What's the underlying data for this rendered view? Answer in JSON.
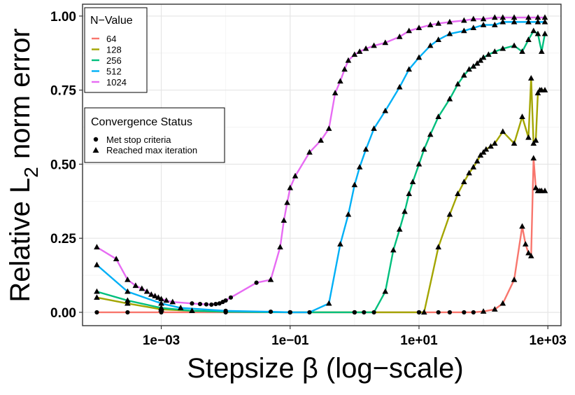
{
  "chart_data": {
    "type": "line",
    "xscale": "log10",
    "xlim": [
      6e-05,
      1600
    ],
    "ylim": [
      -0.045,
      1.04
    ],
    "x_ticks": [
      0.001,
      0.1,
      10,
      1000
    ],
    "x_tick_labels": [
      "1e−03",
      "1e−01",
      "1e+01",
      "1e+03"
    ],
    "y_ticks": [
      0,
      0.25,
      0.5,
      0.75,
      1.0
    ],
    "y_tick_labels": [
      "0.00",
      "0.25",
      "0.50",
      "0.75",
      "1.00"
    ],
    "xlabel": "Stepsize β (log−scale)",
    "ylabel_prefix": "Relative L",
    "ylabel_sub": "2",
    "ylabel_suffix": " norm error",
    "grid": true,
    "color_legend": {
      "title": "N−Value",
      "position": "top-left",
      "entries": [
        "64",
        "128",
        "256",
        "512",
        "1024"
      ]
    },
    "shape_legend": {
      "title": "Convergence Status",
      "position": "left",
      "entries": [
        {
          "label": "Met stop criteria",
          "shape": "circle"
        },
        {
          "label": "Reached max iteration",
          "shape": "triangle"
        }
      ]
    },
    "series": [
      {
        "name": "64",
        "color": "#F8766D",
        "x": [
          0.0001,
          0.0003,
          0.001,
          0.01,
          0.1,
          1,
          10,
          20,
          30,
          50,
          70,
          100,
          150,
          200,
          300,
          400,
          450,
          500,
          550,
          600,
          650,
          700,
          750,
          800,
          900
        ],
        "y": [
          0.0,
          0.0,
          0.0,
          0.0,
          0.0,
          0.0,
          0.0,
          0.0,
          0.0,
          0.0,
          0.0,
          0.003,
          0.01,
          0.03,
          0.11,
          0.29,
          0.23,
          0.2,
          0.19,
          0.52,
          0.42,
          0.41,
          0.41,
          0.41,
          0.41
        ],
        "status": [
          "c",
          "c",
          "c",
          "c",
          "c",
          "c",
          "c",
          "c",
          "c",
          "c",
          "c",
          "t",
          "t",
          "t",
          "t",
          "t",
          "t",
          "t",
          "t",
          "t",
          "t",
          "t",
          "t",
          "t",
          "t"
        ]
      },
      {
        "name": "128",
        "color": "#A3A500",
        "x": [
          0.0001,
          0.0003,
          0.001,
          0.003,
          0.01,
          0.1,
          1,
          10,
          12,
          20,
          30,
          40,
          50,
          60,
          70,
          80,
          90,
          100,
          110,
          130,
          150,
          200,
          300,
          400,
          500,
          550,
          600,
          650,
          700,
          750,
          800,
          900
        ],
        "y": [
          0.05,
          0.03,
          0.01,
          0.005,
          0.002,
          0.0,
          0.0,
          0.0,
          0.0,
          0.22,
          0.33,
          0.4,
          0.44,
          0.47,
          0.49,
          0.51,
          0.53,
          0.54,
          0.55,
          0.56,
          0.57,
          0.61,
          0.57,
          0.66,
          0.59,
          0.79,
          0.57,
          0.58,
          0.74,
          0.75,
          0.75,
          0.75
        ],
        "status": [
          "t",
          "t",
          "t",
          "t",
          "c",
          "c",
          "c",
          "c",
          "t",
          "t",
          "t",
          "t",
          "t",
          "t",
          "t",
          "t",
          "t",
          "t",
          "t",
          "t",
          "t",
          "t",
          "t",
          "t",
          "t",
          "t",
          "t",
          "t",
          "t",
          "t",
          "t",
          "t"
        ]
      },
      {
        "name": "256",
        "color": "#00BF7D",
        "x": [
          0.0001,
          0.0003,
          0.001,
          0.003,
          0.01,
          0.1,
          1,
          1.4,
          2,
          3,
          4,
          5,
          6,
          7,
          8,
          10,
          12,
          15,
          20,
          30,
          40,
          50,
          60,
          70,
          80,
          90,
          100,
          120,
          150,
          200,
          300,
          400,
          500,
          600,
          700,
          800,
          900
        ],
        "y": [
          0.07,
          0.04,
          0.015,
          0.005,
          0.002,
          0.0,
          0.0,
          0.0,
          0.0,
          0.07,
          0.21,
          0.28,
          0.34,
          0.4,
          0.44,
          0.5,
          0.55,
          0.6,
          0.66,
          0.72,
          0.77,
          0.8,
          0.82,
          0.83,
          0.84,
          0.85,
          0.86,
          0.87,
          0.88,
          0.89,
          0.9,
          0.88,
          0.92,
          0.95,
          0.94,
          0.88,
          0.94
        ],
        "status": [
          "t",
          "t",
          "t",
          "t",
          "c",
          "c",
          "c",
          "c",
          "c",
          "t",
          "t",
          "t",
          "t",
          "t",
          "t",
          "t",
          "t",
          "t",
          "t",
          "t",
          "t",
          "t",
          "t",
          "t",
          "t",
          "t",
          "t",
          "t",
          "t",
          "t",
          "t",
          "t",
          "t",
          "t",
          "t",
          "t",
          "t"
        ]
      },
      {
        "name": "512",
        "color": "#00B0F6",
        "x": [
          0.0001,
          0.0003,
          0.001,
          0.002,
          0.01,
          0.05,
          0.1,
          0.2,
          0.4,
          0.6,
          0.8,
          1,
          1.2,
          1.5,
          2,
          3,
          5,
          7,
          10,
          15,
          20,
          30,
          50,
          70,
          100,
          150,
          200,
          300,
          500,
          700,
          900
        ],
        "y": [
          0.16,
          0.07,
          0.03,
          0.015,
          0.005,
          0.002,
          0.0,
          0.0,
          0.03,
          0.23,
          0.33,
          0.43,
          0.49,
          0.55,
          0.62,
          0.68,
          0.76,
          0.82,
          0.86,
          0.9,
          0.92,
          0.94,
          0.95,
          0.96,
          0.97,
          0.97,
          0.98,
          0.98,
          0.98,
          0.98,
          0.98
        ],
        "status": [
          "t",
          "t",
          "t",
          "t",
          "c",
          "c",
          "c",
          "c",
          "t",
          "t",
          "t",
          "t",
          "t",
          "t",
          "t",
          "t",
          "t",
          "t",
          "t",
          "t",
          "t",
          "t",
          "t",
          "t",
          "t",
          "t",
          "t",
          "t",
          "t",
          "t",
          "t"
        ]
      },
      {
        "name": "1024",
        "color": "#E76BF3",
        "x": [
          0.0001,
          0.0002,
          0.0003,
          0.0004,
          0.0005,
          0.0006,
          0.0007,
          0.0008,
          0.0009,
          0.001,
          0.0012,
          0.0015,
          0.003,
          0.004,
          0.005,
          0.006,
          0.007,
          0.008,
          0.009,
          0.01,
          0.012,
          0.03,
          0.05,
          0.07,
          0.08,
          0.09,
          0.1,
          0.12,
          0.2,
          0.3,
          0.4,
          0.5,
          0.6,
          0.7,
          0.8,
          1,
          1.2,
          1.5,
          2,
          3,
          5,
          7,
          10,
          15,
          20,
          30,
          50,
          70,
          100,
          150,
          200,
          300,
          500,
          700,
          900
        ],
        "y": [
          0.22,
          0.18,
          0.11,
          0.09,
          0.08,
          0.07,
          0.06,
          0.055,
          0.05,
          0.045,
          0.04,
          0.035,
          0.03,
          0.028,
          0.027,
          0.026,
          0.028,
          0.03,
          0.035,
          0.04,
          0.05,
          0.1,
          0.11,
          0.22,
          0.31,
          0.37,
          0.42,
          0.46,
          0.54,
          0.58,
          0.62,
          0.74,
          0.78,
          0.82,
          0.85,
          0.87,
          0.88,
          0.89,
          0.9,
          0.91,
          0.93,
          0.95,
          0.96,
          0.97,
          0.975,
          0.98,
          0.985,
          0.99,
          0.99,
          0.995,
          0.995,
          0.995,
          0.995,
          0.995,
          0.995
        ],
        "status": [
          "t",
          "t",
          "t",
          "t",
          "t",
          "t",
          "t",
          "t",
          "t",
          "t",
          "t",
          "t",
          "c",
          "c",
          "c",
          "c",
          "c",
          "c",
          "c",
          "c",
          "c",
          "c",
          "t",
          "t",
          "t",
          "t",
          "t",
          "t",
          "t",
          "t",
          "t",
          "t",
          "t",
          "t",
          "t",
          "t",
          "t",
          "t",
          "t",
          "t",
          "t",
          "t",
          "t",
          "t",
          "t",
          "t",
          "t",
          "t",
          "t",
          "t",
          "t",
          "t",
          "t",
          "t",
          "t"
        ]
      }
    ]
  }
}
